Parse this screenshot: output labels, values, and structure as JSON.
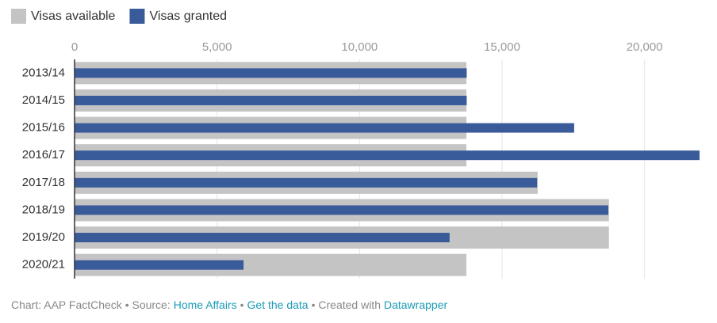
{
  "chart_data": {
    "type": "bar",
    "orientation": "horizontal",
    "categories": [
      "2013/14",
      "2014/15",
      "2015/16",
      "2016/17",
      "2017/18",
      "2018/19",
      "2019/20",
      "2020/21"
    ],
    "series": [
      {
        "name": "Visas available",
        "color": "#c4c4c4",
        "values": [
          13750,
          13750,
          13750,
          13750,
          16250,
          18750,
          18750,
          13750
        ]
      },
      {
        "name": "Visas granted",
        "color": "#3a5b9a",
        "values": [
          13760,
          13760,
          17530,
          21930,
          16230,
          18730,
          13160,
          5930
        ]
      }
    ],
    "xlim": [
      0,
      21930
    ],
    "xticks": [
      0,
      {
        "value": 5000,
        "label": "5,000"
      },
      {
        "value": 10000,
        "label": "10,000"
      },
      {
        "value": 15000,
        "label": "15,000"
      },
      {
        "value": 20000,
        "label": "20,000"
      }
    ],
    "grid": true,
    "legend": "top-left"
  },
  "footer": {
    "segments": [
      {
        "text": "Chart: AAP FactCheck • Source:",
        "link": false
      },
      {
        "text": "Home Affairs",
        "link": true
      },
      {
        "text": "•",
        "link": false
      },
      {
        "text": "Get the data",
        "link": true
      },
      {
        "text": "• Created with",
        "link": false
      },
      {
        "text": "Datawrapper",
        "link": true
      }
    ]
  }
}
